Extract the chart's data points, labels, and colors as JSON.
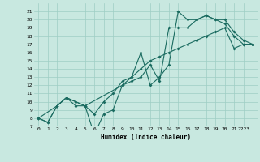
{
  "title": "",
  "xlabel": "Humidex (Indice chaleur)",
  "bg_color": "#c8e8e0",
  "line_color": "#1a6b60",
  "grid_color": "#9ecec4",
  "xlim": [
    -0.5,
    23.5
  ],
  "ylim": [
    7,
    22
  ],
  "xticks": [
    0,
    1,
    2,
    3,
    4,
    5,
    6,
    7,
    8,
    9,
    10,
    11,
    12,
    13,
    14,
    15,
    16,
    17,
    18,
    19,
    20,
    21,
    22
  ],
  "xtick_labels": [
    "0",
    "1",
    "2",
    "3",
    "4",
    "5",
    "6",
    "7",
    "8",
    "9",
    "10",
    "11",
    "12",
    "13",
    "14",
    "15",
    "16",
    "17",
    "18",
    "19",
    "20",
    "21",
    "2223"
  ],
  "yticks": [
    7,
    8,
    9,
    10,
    11,
    12,
    13,
    14,
    15,
    16,
    17,
    18,
    19,
    20,
    21
  ],
  "ytick_labels": [
    "7",
    "8",
    "9",
    "10",
    "11",
    "12",
    "13",
    "14",
    "15",
    "16",
    "17",
    "18",
    "19",
    "20",
    "21"
  ],
  "line1_x": [
    0,
    1,
    2,
    3,
    4,
    5,
    6,
    7,
    8,
    9,
    10,
    11,
    12,
    13,
    14,
    15,
    16,
    17,
    18,
    19,
    20,
    21,
    22,
    23
  ],
  "line1_y": [
    8,
    7.5,
    9.5,
    10.5,
    10,
    9.5,
    8.5,
    10,
    11,
    12.5,
    13,
    16,
    12,
    13,
    14.5,
    21,
    20,
    20,
    20.5,
    20,
    20,
    18.5,
    17.5,
    17
  ],
  "line2_x": [
    0,
    1,
    2,
    3,
    4,
    5,
    6,
    7,
    8,
    9,
    10,
    11,
    12,
    13,
    14,
    15,
    16,
    17,
    18,
    19,
    20,
    21,
    22,
    23
  ],
  "line2_y": [
    8,
    7.5,
    9.5,
    10.5,
    9.5,
    9.5,
    6,
    8.5,
    9,
    12,
    12.5,
    13,
    14.5,
    12.5,
    19,
    19,
    19,
    20,
    20.5,
    20,
    19.5,
    18,
    17,
    17
  ],
  "line3_x": [
    0,
    2,
    3,
    5,
    9,
    10,
    11,
    12,
    13,
    14,
    15,
    16,
    17,
    18,
    19,
    20,
    21,
    22,
    23
  ],
  "line3_y": [
    8,
    9.5,
    10.5,
    9.5,
    12,
    13,
    14,
    15,
    15.5,
    16,
    16.5,
    17,
    17.5,
    18,
    18.5,
    19,
    16.5,
    17,
    17
  ]
}
